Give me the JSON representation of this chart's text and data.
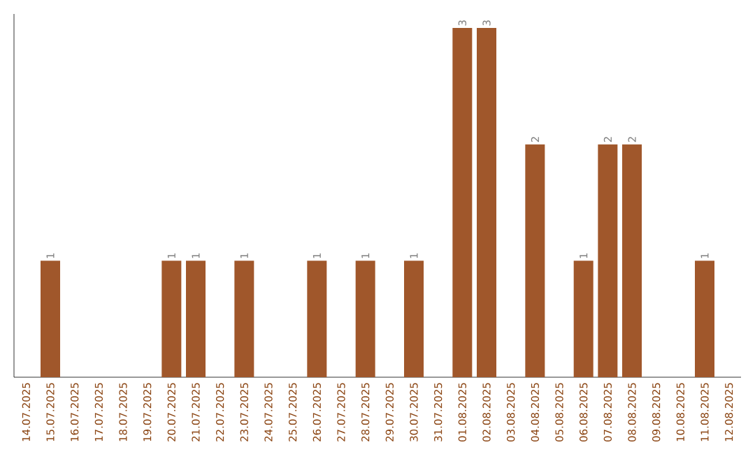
{
  "chart_data": {
    "type": "bar",
    "categories": [
      "14.07.2025",
      "15.07.2025",
      "16.07.2025",
      "17.07.2025",
      "18.07.2025",
      "19.07.2025",
      "20.07.2025",
      "21.07.2025",
      "22.07.2025",
      "23.07.2025",
      "24.07.2025",
      "25.07.2025",
      "26.07.2025",
      "27.07.2025",
      "28.07.2025",
      "29.07.2025",
      "30.07.2025",
      "31.07.2025",
      "01.08.2025",
      "02.08.2025",
      "03.08.2025",
      "04.08.2025",
      "05.08.2025",
      "06.08.2025",
      "07.08.2025",
      "08.08.2025",
      "09.08.2025",
      "10.08.2025",
      "11.08.2025",
      "12.08.2025"
    ],
    "values": [
      0,
      1,
      0,
      0,
      0,
      0,
      1,
      1,
      0,
      1,
      0,
      0,
      1,
      0,
      1,
      0,
      1,
      0,
      3,
      3,
      0,
      2,
      0,
      1,
      2,
      2,
      0,
      0,
      1,
      0
    ],
    "value_labels": [
      null,
      "1",
      null,
      null,
      null,
      null,
      "1",
      "1",
      null,
      "1",
      null,
      null,
      "1",
      null,
      "1",
      null,
      "1",
      null,
      "3",
      "3",
      null,
      "2",
      null,
      "1",
      "2",
      "2",
      null,
      null,
      "1",
      null
    ],
    "color": "#a0572b"
  }
}
